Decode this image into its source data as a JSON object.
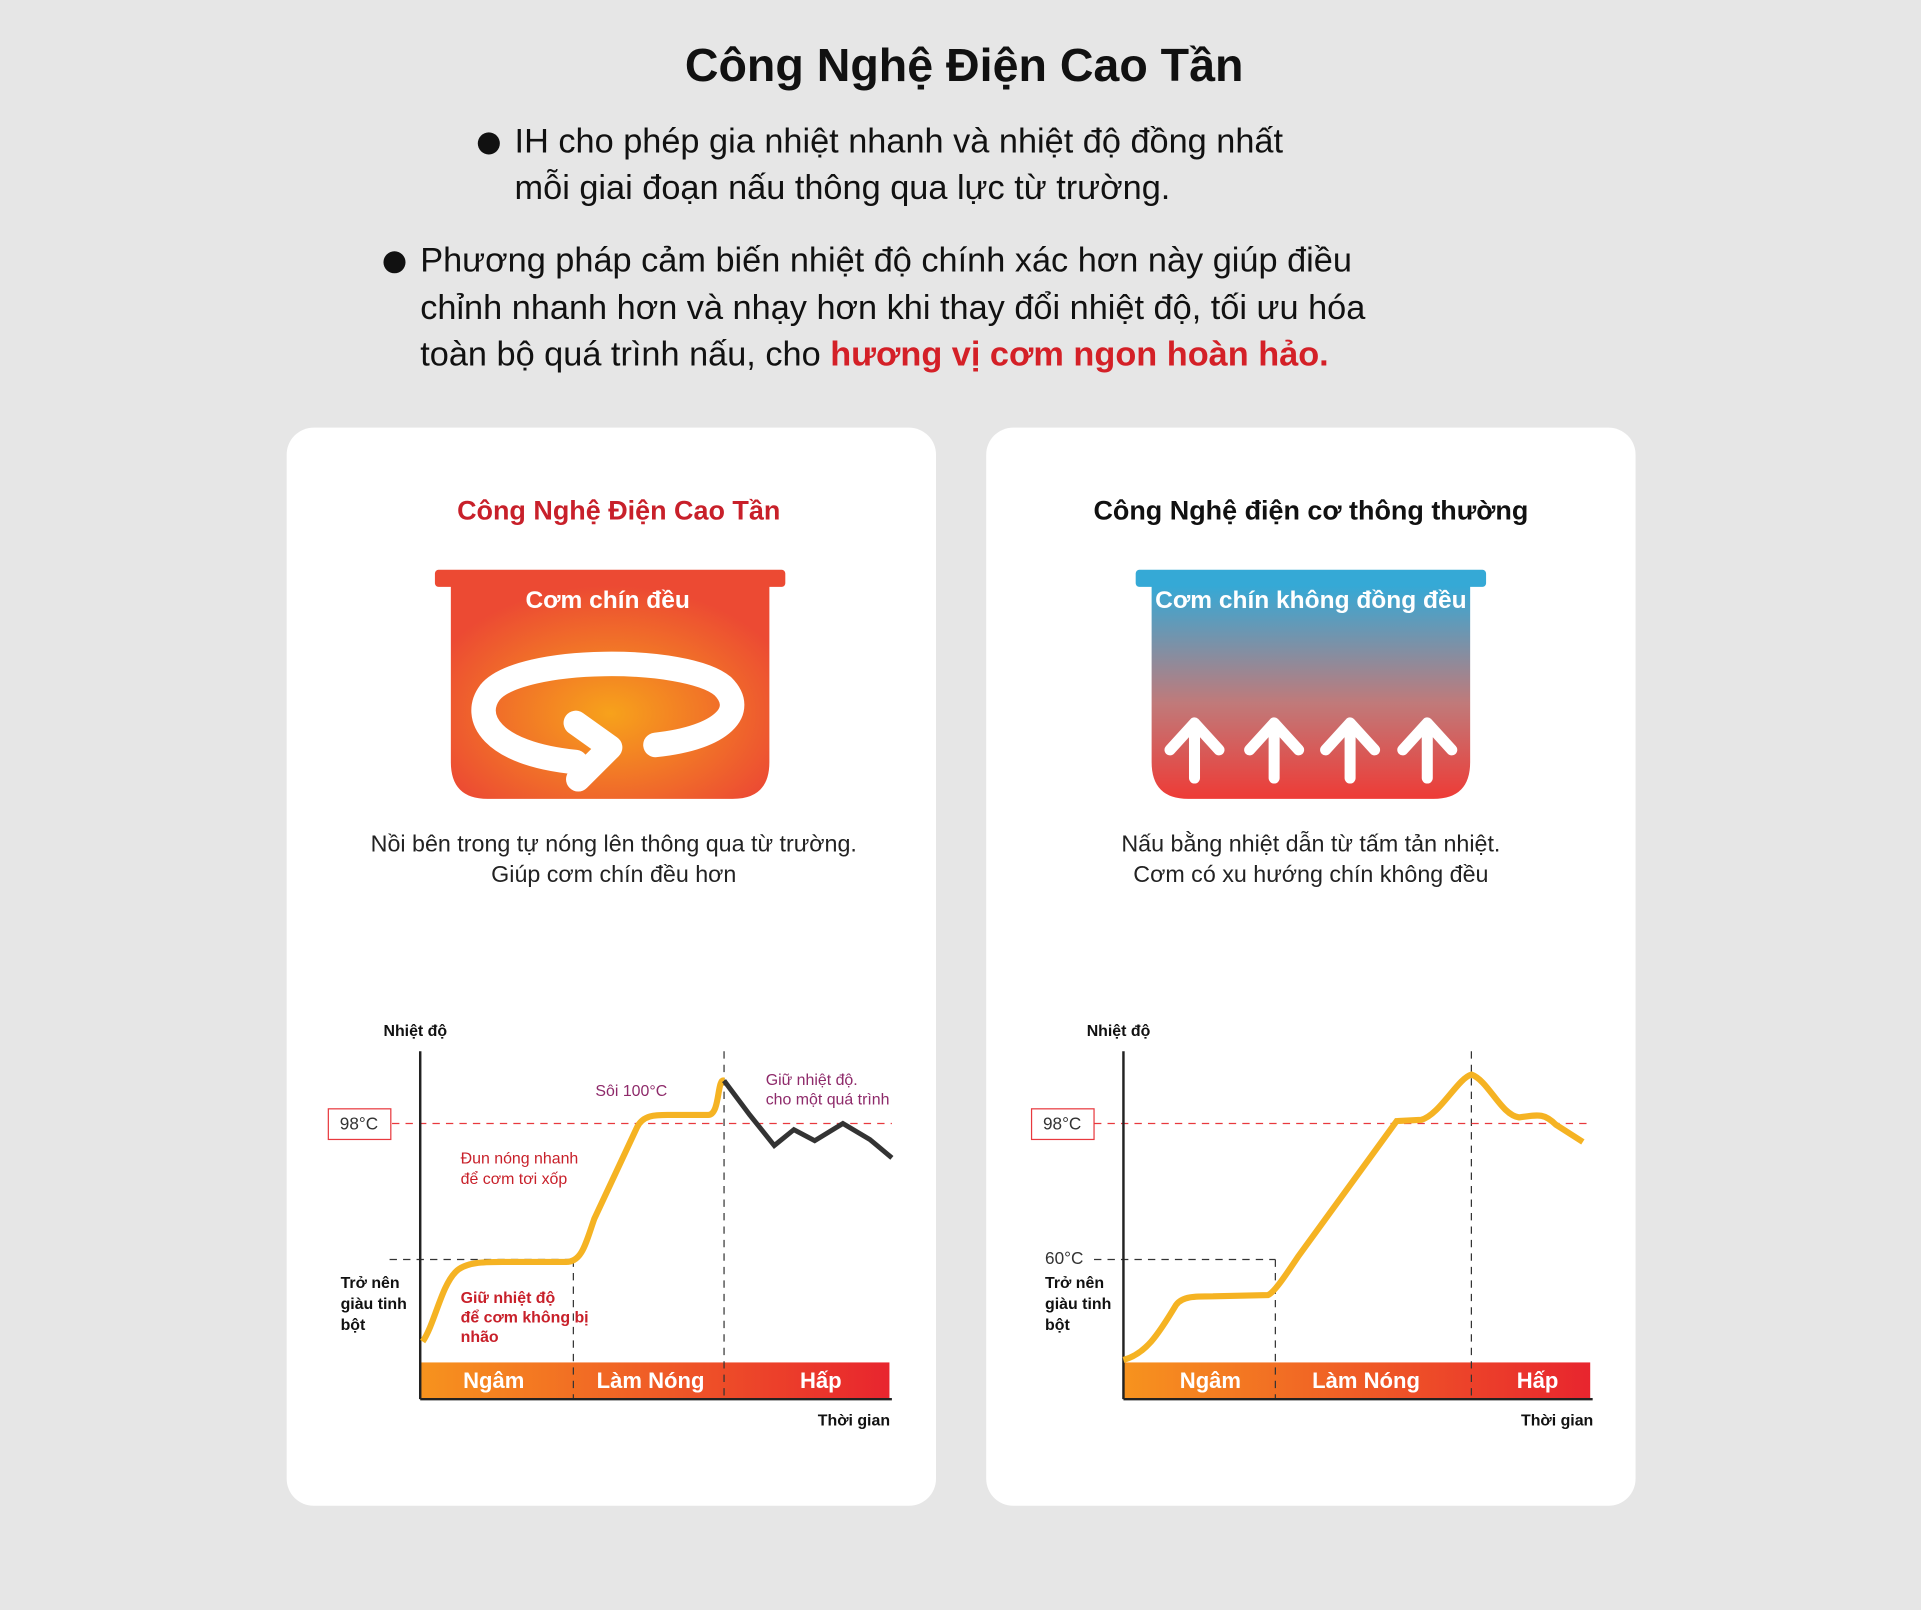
{
  "header": {
    "title": "Công Nghệ Điện Cao Tần",
    "bullets": [
      {
        "lines": [
          "IH cho phép gia nhiệt nhanh và nhiệt độ đồng nhất",
          "mỗi giai đoạn nấu thông qua lực từ trường."
        ]
      },
      {
        "lines": [
          "Phương pháp cảm biến nhiệt độ chính xác hơn này giúp điều",
          "chỉnh nhanh hơn và nhạy hơn khi thay đổi nhiệt độ, tối ưu hóa",
          "toàn bộ quá trình nấu, cho "
        ],
        "highlight": "hương vị cơm ngon hoàn hảo."
      }
    ]
  },
  "panels": [
    {
      "title": "Công Nghệ Điện Cao Tần",
      "pot_label": "Cơm chín đều",
      "caption": [
        "Nồi bên trong tự nóng lên thông qua từ trường.",
        "Giúp cơm chín đều hơn"
      ],
      "chart": {
        "y_label": "Nhiệt độ",
        "x_label": "Thời gian",
        "ref_label": "98°C",
        "side_label": [
          "Trở nên",
          "giàu tinh",
          "bột"
        ],
        "phases": [
          "Ngâm",
          "Làm Nóng",
          "Hấp"
        ],
        "annotations": {
          "hold": [
            "Giữ nhiệt độ",
            "để cơm không bị",
            "nhão"
          ],
          "heat": [
            "Đun nóng nhanh",
            "để cơm tơi xốp"
          ],
          "boil": "Sôi 100°C",
          "keep": [
            "Giữ nhiệt độ.",
            "cho một quá trình"
          ]
        }
      }
    },
    {
      "title": "Công Nghệ điện cơ thông thường",
      "pot_label": "Cơm chín không đồng đều",
      "caption": [
        "Nấu bằng nhiệt dẫn từ tấm tản nhiệt.",
        "Cơm có xu hướng chín không đều"
      ],
      "chart": {
        "y_label": "Nhiệt độ",
        "x_label": "Thời gian",
        "ref_label": "98°C",
        "low_label": "60°C",
        "side_label": [
          "Trở nên",
          "giàu tinh",
          "bột"
        ],
        "phases": [
          "Ngâm",
          "Làm Nóng",
          "Hấp"
        ]
      }
    }
  ]
}
